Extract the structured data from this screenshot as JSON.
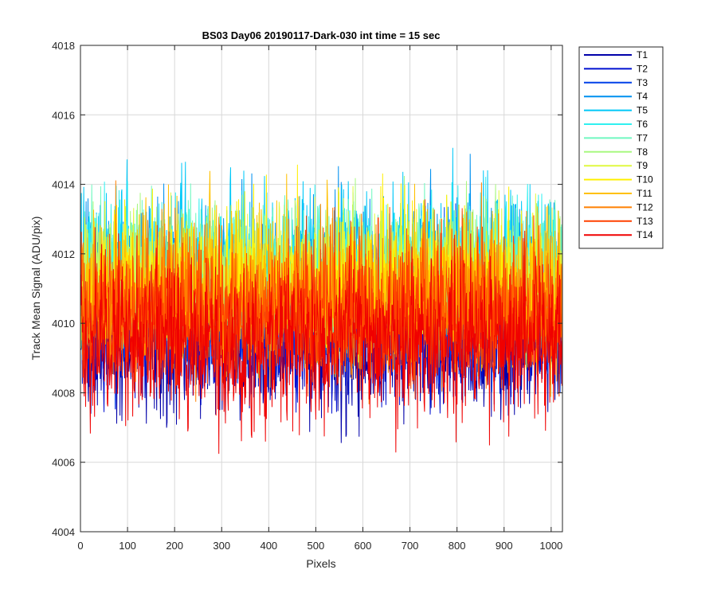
{
  "chart_data": {
    "type": "line",
    "title": "BS03 Day06 20190117-Dark-030 int time = 15 sec",
    "xlabel": "Pixels",
    "ylabel": "Track Mean Signal (ADU/pix)",
    "xlim": [
      0,
      1024
    ],
    "ylim": [
      4004,
      4018
    ],
    "x_ticks": [
      0,
      100,
      200,
      300,
      400,
      500,
      600,
      700,
      800,
      900,
      1000
    ],
    "y_ticks": [
      4004,
      4006,
      4008,
      4010,
      4012,
      4014,
      4016,
      4018
    ],
    "grid": true,
    "legend_position": "outside-top-right",
    "x_range": [
      1,
      1024
    ],
    "series": [
      {
        "name": "T1",
        "color": "#0000AA",
        "mean": 4009.3,
        "min": 4005.7,
        "max": 4013.4
      },
      {
        "name": "T2",
        "color": "#0010D0",
        "mean": 4009.6,
        "min": 4006.6,
        "max": 4013.6
      },
      {
        "name": "T3",
        "color": "#0040E8",
        "mean": 4010.0,
        "min": 4007.0,
        "max": 4014.0
      },
      {
        "name": "T4",
        "color": "#0090F0",
        "mean": 4011.2,
        "min": 4008.0,
        "max": 4015.7
      },
      {
        "name": "T5",
        "color": "#00C8F8",
        "mean": 4011.4,
        "min": 4008.3,
        "max": 4016.0
      },
      {
        "name": "T6",
        "color": "#30F0F0",
        "mean": 4011.3,
        "min": 4008.2,
        "max": 4015.4
      },
      {
        "name": "T7",
        "color": "#70F8C0",
        "mean": 4011.2,
        "min": 4008.2,
        "max": 4015.3
      },
      {
        "name": "T8",
        "color": "#A8F880",
        "mean": 4011.0,
        "min": 4008.0,
        "max": 4015.1
      },
      {
        "name": "T9",
        "color": "#E0F840",
        "mean": 4010.8,
        "min": 4007.8,
        "max": 4015.0
      },
      {
        "name": "T10",
        "color": "#FFF000",
        "mean": 4010.7,
        "min": 4007.5,
        "max": 4015.7
      },
      {
        "name": "T11",
        "color": "#FFC000",
        "mean": 4010.5,
        "min": 4007.3,
        "max": 4015.4
      },
      {
        "name": "T12",
        "color": "#FF8000",
        "mean": 4010.3,
        "min": 4007.0,
        "max": 4015.0
      },
      {
        "name": "T13",
        "color": "#FF4000",
        "mean": 4010.0,
        "min": 4006.8,
        "max": 4014.6
      },
      {
        "name": "T14",
        "color": "#F00000",
        "mean": 4009.6,
        "min": 4005.3,
        "max": 4013.7
      }
    ]
  }
}
